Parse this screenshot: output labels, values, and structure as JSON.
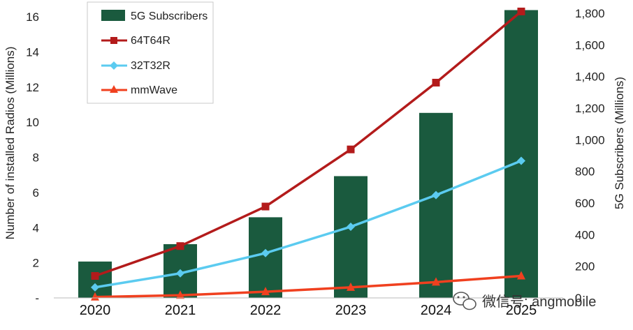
{
  "chart_data": {
    "type": "bar+line",
    "categories": [
      "2020",
      "2021",
      "2022",
      "2023",
      "2024",
      "2025"
    ],
    "series": [
      {
        "name": "5G Subscribers",
        "kind": "bar",
        "axis": "right",
        "color": "#1a5a3e",
        "values": [
          230,
          340,
          510,
          770,
          1170,
          1820
        ]
      },
      {
        "name": "64T64R",
        "kind": "line",
        "axis": "left",
        "marker": "square",
        "color": "#b31b1b",
        "values": [
          1.25,
          2.95,
          5.2,
          8.45,
          12.25,
          16.3
        ]
      },
      {
        "name": "32T32R",
        "kind": "line",
        "axis": "left",
        "marker": "diamond",
        "color": "#5bcbf0",
        "values": [
          0.6,
          1.4,
          2.55,
          4.05,
          5.85,
          7.8
        ]
      },
      {
        "name": "mmWave",
        "kind": "line",
        "axis": "left",
        "marker": "triangle",
        "color": "#f0401f",
        "values": [
          0.05,
          0.15,
          0.35,
          0.6,
          0.9,
          1.25
        ]
      }
    ],
    "y_left": {
      "label": "Number of installed Radios (Millions)",
      "range": [
        0,
        16
      ],
      "ticks": [
        "-",
        "2",
        "4",
        "6",
        "8",
        "10",
        "12",
        "14",
        "16"
      ],
      "tick_values": [
        0,
        2,
        4,
        6,
        8,
        10,
        12,
        14,
        16
      ]
    },
    "y_right": {
      "label": "5G Subscribers (Millions)",
      "range": [
        0,
        1800
      ],
      "ticks": [
        "0",
        "200",
        "400",
        "600",
        "800",
        "1,000",
        "1,200",
        "1,400",
        "1,600",
        "1,800"
      ],
      "tick_values": [
        0,
        200,
        400,
        600,
        800,
        1000,
        1200,
        1400,
        1600,
        1800
      ]
    },
    "legend_position": "top-left",
    "grid": false
  },
  "watermark": {
    "text": "微信号: angmobile",
    "icon": "wechat-icon"
  }
}
